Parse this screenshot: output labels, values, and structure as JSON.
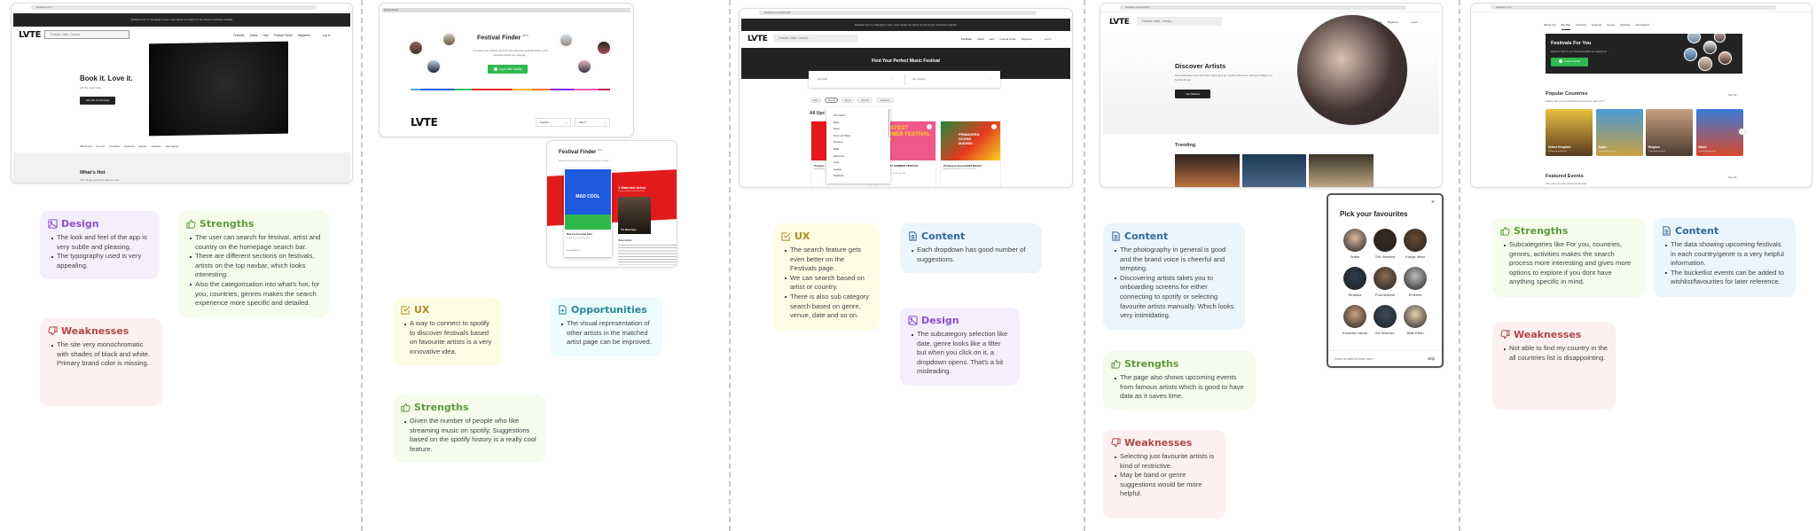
{
  "colors": {
    "design": "#8d4fc3",
    "strengths": "#5e9b3b",
    "weaknesses": "#b04848",
    "ux": "#b08a20",
    "opportunities": "#2b8896",
    "content": "#30699a"
  },
  "screens": {
    "home": {
      "url": "festicket.com",
      "banner": "festicket.com is changing! Learn more about our plans for the former Festicket website",
      "logo": "LVTE",
      "search_placeholder": "Festival, Artist, Country...",
      "nav": [
        "Festivals",
        "Artists",
        "Help",
        "Festival Finder",
        "Magazine"
      ],
      "login": "Log in",
      "hero_title": "Book it. Love it.",
      "hero_sub": "Let the music play",
      "cta": "Join the Community",
      "subnav": [
        "What's Hot",
        "For You",
        "Countries",
        "Featured",
        "Genres",
        "Activities",
        "Get Inspired"
      ],
      "section_title": "What's Hot",
      "section_sub": "The things you don't want to miss"
    },
    "finder": {
      "url": "festival-finder/",
      "title": "Festival Finder",
      "badge": "BETA",
      "desc": "Connect your Spotify account and discover festivals where your favourite artists are playing...",
      "spotify_button": "Log in with Spotify",
      "logo": "LVTE",
      "language": "English",
      "currency": "INR ₹"
    },
    "finder_result": {
      "title": "Festival Finder",
      "badge": "BETA",
      "desc": "Read the best festival based on your listening history on Spotify",
      "poster": "MAD COOL",
      "festival_name": "Mad Cool Festival 2023",
      "festival_meta": "Madrid, Spain • 6-8 July 2023",
      "price": "From ₹18295.00",
      "matched": "1 Matched Artist",
      "matched_sub": "Playing at Mad Cool Festival 2023",
      "artist": "The Black Keys",
      "other_artists": "Other Artists"
    },
    "festivals": {
      "url": "festicket.com/festivals/",
      "banner": "festicket.com is changing! Learn more about our plans for the former Festicket website",
      "logo": "LVTE",
      "search_placeholder": "Festival, Artist, Country...",
      "nav": [
        "Festivals",
        "Artists",
        "Help",
        "Festival Finder",
        "Magazine"
      ],
      "login": "Log in",
      "hero_title": "Find Your Perfect Music Festival",
      "artist_select": "Any Artist",
      "country_select": "Any Country",
      "filters": [
        "Date",
        "Genre",
        "Venue",
        "Activity",
        "Collection"
      ],
      "genres": [
        "Alternative",
        "Bass",
        "Disco",
        "Drum and Bass",
        "Dubstep",
        "EDM",
        "Electronic",
        "Funk",
        "Garage",
        "Hardstyle"
      ],
      "section_title": "All Upc",
      "cards": [
        {
          "name": "Primave",
          "meta": "Sant Adrià de"
        },
        {
          "name": "BASSFEST SUMMER FESTIVAL",
          "meta": "United Kingdom • 20-30 July 2023",
          "poster": "BASSFEST SUMMER FESTIVAL 2023"
        },
        {
          "name": "Primavera Sound 2023 Madrid",
          "meta": "Arganda del Rey, Spain • 8-11 June 2023",
          "poster": "PRIMAVERA SOUND MADRID"
        }
      ]
    },
    "artists": {
      "url": "festicket.com/artists/",
      "logo": "LVTE",
      "search_placeholder": "Festival, Artist, Country...",
      "nav": [
        "Festivals",
        "Artists",
        "Help",
        "Festival Finder",
        "Magazine"
      ],
      "login": "Log in",
      "hero_title": "Discover Artists",
      "hero_sub": "Find and follow your favourite artists and get notified whenever they get added to a festival lineup",
      "cta": "Get Started",
      "section_title": "Trending"
    },
    "favourites": {
      "title": "Pick your favourites",
      "artists": [
        "Drake",
        "The Weeknd",
        "Kanye West",
        "Rihanna",
        "Post Malone",
        "Eminem",
        "Kendrick Lamar",
        "Ed Sheeran",
        "Billie Eilish"
      ],
      "hint": "Select an artist to follow them",
      "skip": "Skip"
    },
    "foryou": {
      "url": "festicket.com",
      "subnav": [
        "What's Hot",
        "For You",
        "Countries",
        "Featured",
        "Genres",
        "Activities",
        "Get Inspired"
      ],
      "active_tab": "For You",
      "banner_title": "Festivals For You",
      "banner_sub": "Discover where your favourite artists are playing at...",
      "connect": "Connect Spotify",
      "countries_title": "Popular Countries",
      "countries_sub": "Where will your next festival experience take you?",
      "see_all": "See All",
      "countries": [
        {
          "name": "United Kingdom",
          "count": "50 upcoming festivals"
        },
        {
          "name": "Spain",
          "count": "8 upcoming festivals"
        },
        {
          "name": "Belgium",
          "count": "3 upcoming festival"
        },
        {
          "name": "Brazil",
          "count": "3 upcoming festivals"
        }
      ],
      "featured_title": "Featured Events",
      "featured_sub": "The ones on everyone's bucket list"
    }
  },
  "notes": {
    "c1_design": {
      "title": "Design",
      "icon": "image-icon",
      "items": [
        "The look and feel of the app is very subtle and pleasing.",
        "The typography used is very appealing."
      ]
    },
    "c1_strengths": {
      "title": "Strengths",
      "icon": "thumbs-up-icon",
      "items": [
        "The user can search for festival, artist and country on the homepage search bar.",
        "There are different sections on festivals, artists on the top navbar, which looks interesting.",
        "Also the categorisation into what's hot, for you, countries, genres makes the search experience more specific and detailed."
      ]
    },
    "c1_weak": {
      "title": "Weaknesses",
      "icon": "thumbs-down-icon",
      "items": [
        "The site very monochromatic with shades of black and white. Primary brand color is missing."
      ]
    },
    "c2_ux": {
      "title": "UX",
      "icon": "checkbox-icon",
      "items": [
        "A way to connect to spotify to discover festivals based on favourite artists is a very innovative idea."
      ]
    },
    "c2_opp": {
      "title": "Opportunities",
      "icon": "file-plus-icon",
      "items": [
        "The visual representation of other artists in the matched artist page can be improved."
      ]
    },
    "c2_strengths": {
      "title": "Strengths",
      "icon": "thumbs-up-icon",
      "items": [
        "Given the number of people who like streaming music on spotify, Suggestions based on the spotify history is a really cool feature."
      ]
    },
    "c3_ux": {
      "title": "UX",
      "icon": "checkbox-icon",
      "items": [
        "The search feature gets even better on the Festivals page.",
        "We can search based on artist or country.",
        "There is also sub category search based on genre, venue, date and so on."
      ]
    },
    "c3_content": {
      "title": "Content",
      "icon": "document-icon",
      "items": [
        "Each dropdown has good number of suggestions."
      ]
    },
    "c3_design": {
      "title": "Design",
      "icon": "image-icon",
      "items": [
        "The subcategory selection like date, genre looks like a filter but when you click on it, a dropdown opens. That's a bit misleading."
      ]
    },
    "c4_content": {
      "title": "Content",
      "icon": "document-icon",
      "items": [
        "The photography in general is good and the brand voice is cheerful and tempting.",
        "Discovering artists takes you to onboarding screens for either connecting to spotify or selecting favourite artists manually. Which looks very intimidating."
      ]
    },
    "c4_strengths": {
      "title": "Strengths",
      "icon": "thumbs-up-icon",
      "items": [
        "The page also shows upcoming events from famous artists which is good to have data as it saves time."
      ]
    },
    "c4_weak": {
      "title": "Weaknesses",
      "icon": "thumbs-down-icon",
      "items": [
        "Selecting just favourite artists is kind of restrictive.",
        "May be band or genre suggestions would be more helpful."
      ]
    },
    "c5_strengths": {
      "title": "Strengths",
      "icon": "thumbs-up-icon",
      "items": [
        "Subcategories like For you, countries, genres, activities makes the search process  more interesting and gives more options to explore if you dont have anything specific in mind."
      ]
    },
    "c5_content": {
      "title": "Content",
      "icon": "document-icon",
      "items": [
        "The data showing upcoming festivals in each country/genre is a very helpful information.",
        "The bucketlist events can be added to wishlist/favourites for later reference."
      ]
    },
    "c5_weak": {
      "title": "Weaknesses",
      "icon": "thumbs-down-icon",
      "items": [
        "Not able to find my country in the all countries list is disappointing."
      ]
    }
  }
}
